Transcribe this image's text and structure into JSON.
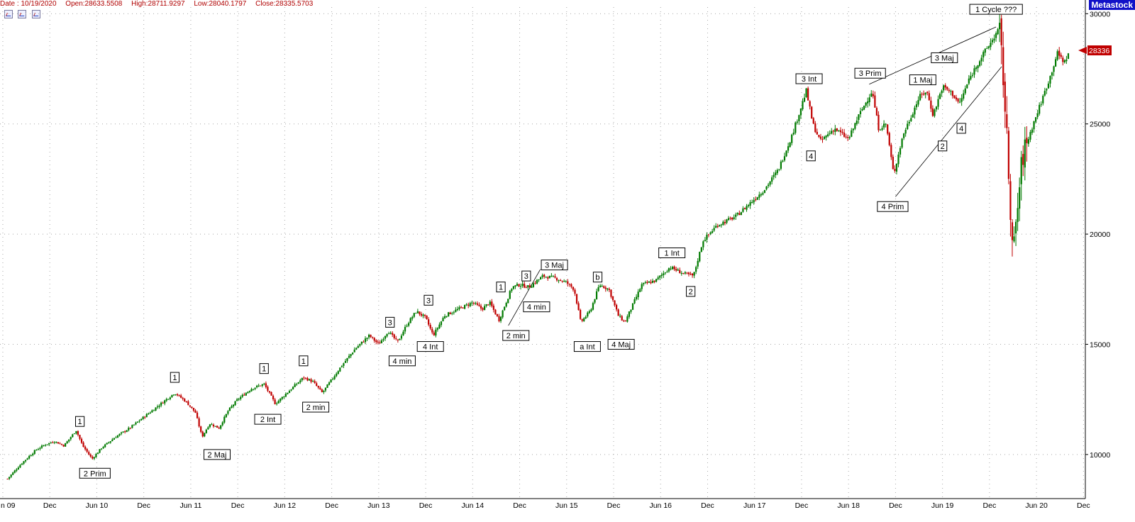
{
  "header": {
    "date": "Date : 10/19/2020",
    "open": "Open:28633.5508",
    "high": "High:28711.9297",
    "low": "Low:28040.1797",
    "close": "Close:28335.5703"
  },
  "brand": "Metastock",
  "toolbar": {
    "icons": [
      "chart-zoom-in-icon",
      "chart-zoom-out-icon",
      "chart-drawing-icon"
    ]
  },
  "colors": {
    "up_candle": "#007a00",
    "down_candle": "#c00000",
    "grid": "#a8a8a8",
    "price_marker": "#c00000"
  },
  "chart_data": {
    "type": "candlestick",
    "title": "",
    "x_ticks": [
      "n 09",
      "Dec",
      "Jun 10",
      "Dec",
      "Jun 11",
      "Dec",
      "Jun 12",
      "Dec",
      "Jun 13",
      "Dec",
      "Jun 14",
      "Dec",
      "Jun 15",
      "Dec",
      "Jun 16",
      "Dec",
      "Jun 17",
      "Dec",
      "Jun 18",
      "Dec",
      "Jun 19",
      "Dec",
      "Jun 20",
      "Dec"
    ],
    "y_ticks": [
      10000,
      15000,
      20000,
      25000,
      30000
    ],
    "ylim": [
      8000,
      30300
    ],
    "last_price_label": "28336",
    "grid": true,
    "series": [
      {
        "values": [
          [
            2009.55,
            8900
          ],
          [
            2009.7,
            9600
          ],
          [
            2009.85,
            10200
          ],
          [
            2009.95,
            10450
          ],
          [
            2010.05,
            10600
          ],
          [
            2010.15,
            10400
          ],
          [
            2010.28,
            11100
          ],
          [
            2010.35,
            10400
          ],
          [
            2010.45,
            9800
          ],
          [
            2010.55,
            10300
          ],
          [
            2010.7,
            10800
          ],
          [
            2010.85,
            11200
          ],
          [
            2011.0,
            11700
          ],
          [
            2011.15,
            12200
          ],
          [
            2011.33,
            12800
          ],
          [
            2011.45,
            12400
          ],
          [
            2011.55,
            11900
          ],
          [
            2011.62,
            10800
          ],
          [
            2011.7,
            11400
          ],
          [
            2011.8,
            11200
          ],
          [
            2011.9,
            12000
          ],
          [
            2012.0,
            12500
          ],
          [
            2012.15,
            13000
          ],
          [
            2012.28,
            13200
          ],
          [
            2012.4,
            12300
          ],
          [
            2012.55,
            12900
          ],
          [
            2012.7,
            13500
          ],
          [
            2012.8,
            13300
          ],
          [
            2012.9,
            12800
          ],
          [
            2013.0,
            13400
          ],
          [
            2013.1,
            14000
          ],
          [
            2013.25,
            14800
          ],
          [
            2013.4,
            15400
          ],
          [
            2013.5,
            15000
          ],
          [
            2013.6,
            15600
          ],
          [
            2013.7,
            15100
          ],
          [
            2013.8,
            15900
          ],
          [
            2013.9,
            16500
          ],
          [
            2014.0,
            16200
          ],
          [
            2014.08,
            15400
          ],
          [
            2014.2,
            16300
          ],
          [
            2014.35,
            16600
          ],
          [
            2014.5,
            16900
          ],
          [
            2014.6,
            16600
          ],
          [
            2014.68,
            16900
          ],
          [
            2014.78,
            16100
          ],
          [
            2014.92,
            17600
          ],
          [
            2015.0,
            17700
          ],
          [
            2015.1,
            17600
          ],
          [
            2015.25,
            18100
          ],
          [
            2015.38,
            18000
          ],
          [
            2015.5,
            17800
          ],
          [
            2015.58,
            17500
          ],
          [
            2015.65,
            16000
          ],
          [
            2015.75,
            16500
          ],
          [
            2015.85,
            17700
          ],
          [
            2015.95,
            17500
          ],
          [
            2016.05,
            16300
          ],
          [
            2016.12,
            16000
          ],
          [
            2016.3,
            17700
          ],
          [
            2016.45,
            17900
          ],
          [
            2016.6,
            18500
          ],
          [
            2016.75,
            18200
          ],
          [
            2016.85,
            18100
          ],
          [
            2016.95,
            19700
          ],
          [
            2017.1,
            20400
          ],
          [
            2017.3,
            20800
          ],
          [
            2017.45,
            21400
          ],
          [
            2017.6,
            22000
          ],
          [
            2017.75,
            22900
          ],
          [
            2017.9,
            24500
          ],
          [
            2018.05,
            26500
          ],
          [
            2018.12,
            25000
          ],
          [
            2018.2,
            24200
          ],
          [
            2018.35,
            24800
          ],
          [
            2018.5,
            24300
          ],
          [
            2018.6,
            25300
          ],
          [
            2018.75,
            26500
          ],
          [
            2018.82,
            24800
          ],
          [
            2018.9,
            25000
          ],
          [
            2018.98,
            22700
          ],
          [
            2019.08,
            24500
          ],
          [
            2019.25,
            26200
          ],
          [
            2019.33,
            26500
          ],
          [
            2019.4,
            25400
          ],
          [
            2019.5,
            26700
          ],
          [
            2019.6,
            26400
          ],
          [
            2019.68,
            25900
          ],
          [
            2019.78,
            27000
          ],
          [
            2019.88,
            27800
          ],
          [
            2020.0,
            28600
          ],
          [
            2020.1,
            29300
          ],
          [
            2020.15,
            27000
          ],
          [
            2020.2,
            23000
          ],
          [
            2020.25,
            19000
          ],
          [
            2020.35,
            23500
          ],
          [
            2020.45,
            24800
          ],
          [
            2020.55,
            26000
          ],
          [
            2020.65,
            27200
          ],
          [
            2020.72,
            28200
          ],
          [
            2020.8,
            27800
          ],
          [
            2020.85,
            28336
          ]
        ]
      }
    ],
    "annotations": [
      {
        "label": "1",
        "x": 2010.32,
        "y": 11500
      },
      {
        "label": "2 Prim",
        "x": 2010.48,
        "y": 9150
      },
      {
        "label": "1",
        "x": 2011.33,
        "y": 13500
      },
      {
        "label": "2 Maj",
        "x": 2011.78,
        "y": 10000
      },
      {
        "label": "1",
        "x": 2012.28,
        "y": 13900
      },
      {
        "label": "2 Int",
        "x": 2012.32,
        "y": 11600
      },
      {
        "label": "1",
        "x": 2012.7,
        "y": 14250
      },
      {
        "label": "2 min",
        "x": 2012.83,
        "y": 12150
      },
      {
        "label": "3",
        "x": 2013.62,
        "y": 16000
      },
      {
        "label": "4 min",
        "x": 2013.75,
        "y": 14250
      },
      {
        "label": "3",
        "x": 2014.03,
        "y": 17000
      },
      {
        "label": "4 Int",
        "x": 2014.05,
        "y": 14900
      },
      {
        "label": "1",
        "x": 2014.8,
        "y": 17600
      },
      {
        "label": "2 min",
        "x": 2014.96,
        "y": 15400
      },
      {
        "label": "3",
        "x": 2015.07,
        "y": 18100
      },
      {
        "label": "4 min",
        "x": 2015.18,
        "y": 16700
      },
      {
        "label": "3 Maj",
        "x": 2015.37,
        "y": 18600
      },
      {
        "label": "b",
        "x": 2015.83,
        "y": 18050
      },
      {
        "label": "a Int",
        "x": 2015.72,
        "y": 14900
      },
      {
        "label": "4 Maj",
        "x": 2016.08,
        "y": 15000
      },
      {
        "label": "1 Int",
        "x": 2016.62,
        "y": 19150
      },
      {
        "label": "2",
        "x": 2016.82,
        "y": 17400
      },
      {
        "label": "3 Int",
        "x": 2018.08,
        "y": 27050
      },
      {
        "label": "4",
        "x": 2018.1,
        "y": 23550
      },
      {
        "label": "3 Prim",
        "x": 2018.73,
        "y": 27300
      },
      {
        "label": "4 Prim",
        "x": 2018.97,
        "y": 21250
      },
      {
        "label": "1 Maj",
        "x": 2019.29,
        "y": 27000
      },
      {
        "label": "3 Maj",
        "x": 2019.52,
        "y": 28000
      },
      {
        "label": "2",
        "x": 2019.5,
        "y": 24000
      },
      {
        "label": "4",
        "x": 2019.7,
        "y": 24800
      },
      {
        "label": "1 Cycle ???",
        "x": 2020.07,
        "y": 30200
      }
    ],
    "trendlines": [
      [
        [
          2014.88,
          15850
        ],
        [
          2015.22,
          18400
        ]
      ],
      [
        [
          2018.72,
          26800
        ],
        [
          2020.07,
          29400
        ]
      ],
      [
        [
          2019.0,
          21700
        ],
        [
          2020.13,
          27600
        ]
      ]
    ]
  }
}
